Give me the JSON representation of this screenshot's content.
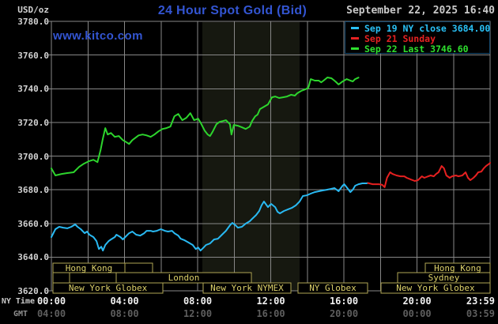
{
  "header": {
    "units_label": "USD/oz",
    "title": "24 Hour Spot Gold (Bid)",
    "watermark": "www.kitco.com",
    "datetime": "September 22, 2025 16:40"
  },
  "legend": {
    "items": [
      {
        "label": "Sep 19 NY close 3684.00",
        "color": "#29c0f5"
      },
      {
        "label": "Sep 21 Sunday",
        "color": "#e62222"
      },
      {
        "label": "Sep 22 Last 3746.60",
        "color": "#2ee02e"
      }
    ]
  },
  "axes": {
    "ny_time_label": "NY Time",
    "gmt_label": "GMT",
    "y_tick_labels": [
      "3780.0",
      "3760.0",
      "3740.0",
      "3720.0",
      "3700.0",
      "3680.0",
      "3660.0",
      "3640.0",
      "3620.0"
    ],
    "ny_ticks": [
      {
        "t": 0,
        "label": "00:00"
      },
      {
        "t": 4,
        "label": "04:00"
      },
      {
        "t": 8,
        "label": "08:00"
      },
      {
        "t": 12,
        "label": "12:00"
      },
      {
        "t": 16,
        "label": "16:00"
      },
      {
        "t": 20,
        "label": "20:00"
      },
      {
        "t": 23.98,
        "label": "23:59",
        "align": "right"
      }
    ],
    "gmt_ticks": [
      {
        "t": 0,
        "label": "04:00"
      },
      {
        "t": 4,
        "label": "08:00"
      },
      {
        "t": 8,
        "label": "12:00"
      },
      {
        "t": 12,
        "label": "16:00"
      },
      {
        "t": 16,
        "label": "20:00"
      },
      {
        "t": 20,
        "label": "00:00"
      },
      {
        "t": 23.98,
        "label": "03:59",
        "align": "right"
      }
    ]
  },
  "sessions": [
    {
      "row": 1,
      "t0": 0.09,
      "t1": 4.02,
      "label": "Hong Kong"
    },
    {
      "row": 1,
      "t0": 4.02,
      "t1": 5.53,
      "label": ""
    },
    {
      "row": 1,
      "t0": 20.45,
      "t1": 24,
      "label": "Hong Kong"
    },
    {
      "row": 2,
      "t0": 0.09,
      "t1": 0.99,
      "label": ""
    },
    {
      "row": 2,
      "t0": 0.99,
      "t1": 3.55,
      "label": ""
    },
    {
      "row": 2,
      "t0": 3.55,
      "t1": 10.94,
      "label": "London"
    },
    {
      "row": 2,
      "t0": 18.94,
      "t1": 24,
      "label": "Sydney"
    },
    {
      "row": 3,
      "t0": 0.09,
      "t1": 6.1,
      "label": "New York Globex"
    },
    {
      "row": 3,
      "t0": 8.3,
      "t1": 13.1,
      "label": "New York NYMEX"
    },
    {
      "row": 3,
      "t0": 13.49,
      "t1": 17.3,
      "label": "NY Globex"
    },
    {
      "row": 3,
      "t0": 18.03,
      "t1": 24,
      "label": "New York Globex"
    }
  ],
  "colors": {
    "background": "#000000",
    "grid": "#878787",
    "band": "#161810",
    "session_border": "#b0a654",
    "session_fill": "#000000",
    "legend_border": "#164a70",
    "title_blue": "#3355d2"
  },
  "chart_data": {
    "type": "line",
    "title": "24 Hour Spot Gold (Bid)",
    "y_unit": "USD/oz",
    "ylim": [
      3620,
      3780
    ],
    "y_tick_step": 20,
    "x_hours_range": [
      0,
      24
    ],
    "x_grid_every_hours": 2,
    "grid": true,
    "legend_position": "top-right",
    "nymex_floor_band_hours": [
      8.26,
      13.58
    ],
    "series": [
      {
        "name": "Sep 19 NY close 3684.00",
        "color": "#29b9f2",
        "points": [
          [
            0,
            3651.9
          ],
          [
            0.22,
            3656.6
          ],
          [
            0.43,
            3658
          ],
          [
            0.65,
            3657.5
          ],
          [
            0.87,
            3657.1
          ],
          [
            1.09,
            3658
          ],
          [
            1.3,
            3659.4
          ],
          [
            1.43,
            3658
          ],
          [
            1.61,
            3656.6
          ],
          [
            1.82,
            3654.2
          ],
          [
            1.95,
            3655.2
          ],
          [
            2.08,
            3653.3
          ],
          [
            2.3,
            3651.9
          ],
          [
            2.47,
            3649.5
          ],
          [
            2.6,
            3644.8
          ],
          [
            2.73,
            3646.2
          ],
          [
            2.82,
            3643.9
          ],
          [
            2.95,
            3647.2
          ],
          [
            3.13,
            3649.5
          ],
          [
            3.26,
            3650.5
          ],
          [
            3.47,
            3651.9
          ],
          [
            3.56,
            3653.3
          ],
          [
            3.78,
            3651.9
          ],
          [
            3.91,
            3650.5
          ],
          [
            4.04,
            3651.9
          ],
          [
            4.25,
            3654.2
          ],
          [
            4.43,
            3655.2
          ],
          [
            4.64,
            3653.3
          ],
          [
            4.86,
            3652.8
          ],
          [
            5.08,
            3654.2
          ],
          [
            5.21,
            3655.6
          ],
          [
            5.43,
            3655.6
          ],
          [
            5.56,
            3655.2
          ],
          [
            5.77,
            3655.6
          ],
          [
            5.99,
            3656.6
          ],
          [
            6.21,
            3655.6
          ],
          [
            6.38,
            3655.2
          ],
          [
            6.6,
            3655.6
          ],
          [
            6.73,
            3654.2
          ],
          [
            6.94,
            3652.8
          ],
          [
            7.07,
            3650.9
          ],
          [
            7.29,
            3650
          ],
          [
            7.51,
            3648.6
          ],
          [
            7.73,
            3647.2
          ],
          [
            7.9,
            3644.8
          ],
          [
            8.03,
            3645.7
          ],
          [
            8.16,
            3643.9
          ],
          [
            8.33,
            3645.7
          ],
          [
            8.46,
            3647.2
          ],
          [
            8.68,
            3648.1
          ],
          [
            8.9,
            3650.5
          ],
          [
            9.11,
            3650.9
          ],
          [
            9.33,
            3653.3
          ],
          [
            9.55,
            3655.6
          ],
          [
            9.77,
            3658.9
          ],
          [
            9.9,
            3660.3
          ],
          [
            10.07,
            3658.9
          ],
          [
            10.2,
            3657.5
          ],
          [
            10.42,
            3658
          ],
          [
            10.63,
            3659.9
          ],
          [
            10.85,
            3661.3
          ],
          [
            10.98,
            3662.7
          ],
          [
            11.2,
            3665
          ],
          [
            11.37,
            3667.4
          ],
          [
            11.5,
            3670.7
          ],
          [
            11.63,
            3673
          ],
          [
            11.85,
            3669.7
          ],
          [
            12.02,
            3671.6
          ],
          [
            12.24,
            3669.7
          ],
          [
            12.37,
            3666.9
          ],
          [
            12.5,
            3666
          ],
          [
            12.72,
            3667.4
          ],
          [
            12.93,
            3668.3
          ],
          [
            13.15,
            3669.2
          ],
          [
            13.37,
            3670.7
          ],
          [
            13.58,
            3673
          ],
          [
            13.76,
            3676.3
          ],
          [
            13.97,
            3676.7
          ],
          [
            14.19,
            3677.7
          ],
          [
            14.41,
            3678.6
          ],
          [
            14.63,
            3679.1
          ],
          [
            14.84,
            3679.6
          ],
          [
            15.06,
            3680
          ],
          [
            15.28,
            3680.5
          ],
          [
            15.49,
            3681
          ],
          [
            15.71,
            3679.1
          ],
          [
            15.93,
            3682.4
          ],
          [
            16.02,
            3683.3
          ],
          [
            16.19,
            3681
          ],
          [
            16.36,
            3678.6
          ],
          [
            16.49,
            3680
          ],
          [
            16.62,
            3682.4
          ],
          [
            16.8,
            3683.3
          ],
          [
            17.01,
            3683.8
          ],
          [
            17.23,
            3683.8
          ],
          [
            17.32,
            3684
          ]
        ]
      },
      {
        "name": "Sep 21 Sunday",
        "color": "#e62020",
        "points": [
          [
            17.32,
            3684
          ],
          [
            17.58,
            3683.3
          ],
          [
            17.92,
            3683.3
          ],
          [
            18.1,
            3682.9
          ],
          [
            18.23,
            3681.5
          ],
          [
            18.36,
            3687.1
          ],
          [
            18.53,
            3690.4
          ],
          [
            18.66,
            3689.4
          ],
          [
            18.88,
            3688.5
          ],
          [
            19.1,
            3688
          ],
          [
            19.31,
            3688
          ],
          [
            19.44,
            3687.1
          ],
          [
            19.66,
            3686.1
          ],
          [
            19.88,
            3685.2
          ],
          [
            20.05,
            3685.7
          ],
          [
            20.27,
            3688
          ],
          [
            20.4,
            3687.1
          ],
          [
            20.62,
            3688
          ],
          [
            20.75,
            3688.5
          ],
          [
            20.92,
            3688
          ],
          [
            21.05,
            3689.4
          ],
          [
            21.18,
            3690.4
          ],
          [
            21.35,
            3694.1
          ],
          [
            21.48,
            3692.7
          ],
          [
            21.61,
            3688.5
          ],
          [
            21.79,
            3687.1
          ],
          [
            21.92,
            3688
          ],
          [
            22.13,
            3688.5
          ],
          [
            22.26,
            3688
          ],
          [
            22.48,
            3688.5
          ],
          [
            22.66,
            3690.4
          ],
          [
            22.79,
            3687.1
          ],
          [
            22.92,
            3685.7
          ],
          [
            23.09,
            3687.1
          ],
          [
            23.22,
            3688.5
          ],
          [
            23.35,
            3690.4
          ],
          [
            23.52,
            3690.8
          ],
          [
            23.65,
            3692.7
          ],
          [
            23.78,
            3694.1
          ],
          [
            23.96,
            3695.5
          ],
          [
            24,
            3696
          ]
        ]
      },
      {
        "name": "Sep 22 Last 3746.60",
        "color": "#2dd52d",
        "points": [
          [
            0,
            3692.7
          ],
          [
            0.22,
            3688.5
          ],
          [
            0.56,
            3689.4
          ],
          [
            0.87,
            3689.9
          ],
          [
            1.22,
            3690.4
          ],
          [
            1.52,
            3693.6
          ],
          [
            1.78,
            3695.5
          ],
          [
            2.04,
            3696.9
          ],
          [
            2.3,
            3697.8
          ],
          [
            2.52,
            3696.4
          ],
          [
            2.69,
            3703.5
          ],
          [
            2.82,
            3710.5
          ],
          [
            2.95,
            3716.6
          ],
          [
            3.08,
            3712.8
          ],
          [
            3.26,
            3713.7
          ],
          [
            3.47,
            3711.4
          ],
          [
            3.69,
            3711.9
          ],
          [
            3.91,
            3709.5
          ],
          [
            4.12,
            3708.1
          ],
          [
            4.25,
            3707.2
          ],
          [
            4.43,
            3709.5
          ],
          [
            4.56,
            3710.5
          ],
          [
            4.77,
            3712.3
          ],
          [
            4.99,
            3712.8
          ],
          [
            5.21,
            3712.3
          ],
          [
            5.43,
            3711.4
          ],
          [
            5.64,
            3712.8
          ],
          [
            5.86,
            3714.7
          ],
          [
            6.08,
            3716.1
          ],
          [
            6.29,
            3716.6
          ],
          [
            6.51,
            3717.5
          ],
          [
            6.73,
            3723.6
          ],
          [
            6.94,
            3725
          ],
          [
            7.16,
            3721.3
          ],
          [
            7.38,
            3722.7
          ],
          [
            7.6,
            3725.5
          ],
          [
            7.81,
            3721.3
          ],
          [
            8.03,
            3722.2
          ],
          [
            8.16,
            3719.9
          ],
          [
            8.38,
            3715.2
          ],
          [
            8.55,
            3712.8
          ],
          [
            8.68,
            3711.9
          ],
          [
            8.81,
            3714.2
          ],
          [
            9.03,
            3718.9
          ],
          [
            9.2,
            3720.3
          ],
          [
            9.38,
            3720.8
          ],
          [
            9.55,
            3721.3
          ],
          [
            9.77,
            3718.9
          ],
          [
            9.85,
            3712.8
          ],
          [
            9.98,
            3718.5
          ],
          [
            10.2,
            3718
          ],
          [
            10.42,
            3717.1
          ],
          [
            10.63,
            3716.1
          ],
          [
            10.85,
            3717.5
          ],
          [
            10.98,
            3720.8
          ],
          [
            11.15,
            3723.6
          ],
          [
            11.28,
            3724.6
          ],
          [
            11.41,
            3727.9
          ],
          [
            11.63,
            3729.3
          ],
          [
            11.85,
            3730.7
          ],
          [
            12.07,
            3734.9
          ],
          [
            12.24,
            3735.4
          ],
          [
            12.46,
            3734.5
          ],
          [
            12.67,
            3734.9
          ],
          [
            12.89,
            3735.4
          ],
          [
            13.11,
            3736.4
          ],
          [
            13.32,
            3735.9
          ],
          [
            13.45,
            3737.3
          ],
          [
            13.67,
            3738.7
          ],
          [
            13.89,
            3739.6
          ],
          [
            14.06,
            3740.6
          ],
          [
            14.19,
            3745.7
          ],
          [
            14.41,
            3744.8
          ],
          [
            14.63,
            3744.8
          ],
          [
            14.76,
            3743.8
          ],
          [
            14.89,
            3744.8
          ],
          [
            15.1,
            3746.7
          ],
          [
            15.32,
            3746.2
          ],
          [
            15.54,
            3744.3
          ],
          [
            15.71,
            3742.5
          ],
          [
            15.93,
            3744.3
          ],
          [
            16.15,
            3745.7
          ],
          [
            16.36,
            3744.8
          ],
          [
            16.49,
            3744.3
          ],
          [
            16.62,
            3745.7
          ],
          [
            16.8,
            3746.6
          ]
        ]
      }
    ]
  }
}
